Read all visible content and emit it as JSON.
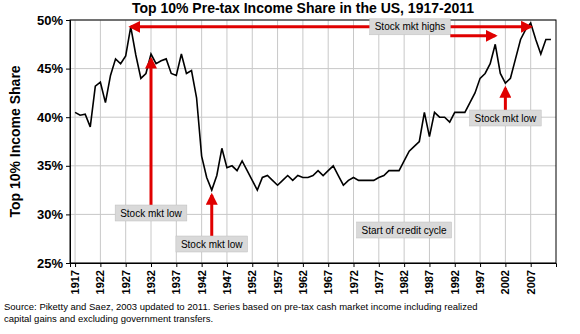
{
  "chart_data": {
    "type": "line",
    "title": "Top 10% Pre-tax Income Share in the US, 1917-2011",
    "y_label": "Top 10% Income Share",
    "source": [
      "Source: Piketty and Saez, 2003 updated to 2011. Series based on pre-tax cash market income including realized",
      "capital gains and excluding government transfers."
    ],
    "x": [
      1917,
      1918,
      1919,
      1920,
      1921,
      1922,
      1923,
      1924,
      1925,
      1926,
      1927,
      1928,
      1929,
      1930,
      1931,
      1932,
      1933,
      1934,
      1935,
      1936,
      1937,
      1938,
      1939,
      1940,
      1941,
      1942,
      1943,
      1944,
      1945,
      1946,
      1947,
      1948,
      1949,
      1950,
      1951,
      1952,
      1953,
      1954,
      1955,
      1956,
      1957,
      1958,
      1959,
      1960,
      1961,
      1962,
      1963,
      1964,
      1965,
      1966,
      1967,
      1968,
      1969,
      1970,
      1971,
      1972,
      1973,
      1974,
      1975,
      1976,
      1977,
      1978,
      1979,
      1980,
      1981,
      1982,
      1983,
      1984,
      1985,
      1986,
      1987,
      1988,
      1989,
      1990,
      1991,
      1992,
      1993,
      1994,
      1995,
      1996,
      1997,
      1998,
      1999,
      2000,
      2001,
      2002,
      2003,
      2004,
      2005,
      2006,
      2007,
      2008,
      2009,
      2010,
      2011
    ],
    "values": [
      40.5,
      40.2,
      40.3,
      39.0,
      43.2,
      43.6,
      41.5,
      44.3,
      46.0,
      45.5,
      46.3,
      49.3,
      46.4,
      44.0,
      44.5,
      46.5,
      45.5,
      45.8,
      46.0,
      44.5,
      44.3,
      46.5,
      44.5,
      44.8,
      42.0,
      36.0,
      33.8,
      32.5,
      34.0,
      36.8,
      34.8,
      35.0,
      34.5,
      35.5,
      34.5,
      33.5,
      32.5,
      33.8,
      34.0,
      33.5,
      33.0,
      33.5,
      34.0,
      33.5,
      34.0,
      33.8,
      33.8,
      34.0,
      34.5,
      34.0,
      34.5,
      35.0,
      34.0,
      33.0,
      33.5,
      33.8,
      33.5,
      33.5,
      33.5,
      33.5,
      33.8,
      34.0,
      34.5,
      34.5,
      34.5,
      35.5,
      36.5,
      37.0,
      37.5,
      40.5,
      38.0,
      40.5,
      40.0,
      40.0,
      39.5,
      40.5,
      40.5,
      40.5,
      41.5,
      42.5,
      44.0,
      44.5,
      45.5,
      47.5,
      44.5,
      43.5,
      44.0,
      46.0,
      48.0,
      49.0,
      49.7,
      48.0,
      46.5,
      48.0,
      48.0
    ],
    "color": "#000000",
    "xlim": [
      1916,
      2012
    ],
    "xticks": [
      1917,
      1922,
      1927,
      1932,
      1937,
      1942,
      1947,
      1952,
      1957,
      1962,
      1967,
      1972,
      1977,
      1982,
      1987,
      1992,
      1997,
      2002,
      2007
    ],
    "ylim": [
      25,
      50
    ],
    "yticks": [
      {
        "value": 25,
        "label": "25%"
      },
      {
        "value": 30,
        "label": "30%"
      },
      {
        "value": 35,
        "label": "35%"
      },
      {
        "value": 40,
        "label": "40%"
      },
      {
        "value": 45,
        "label": "45%"
      },
      {
        "value": 50,
        "label": "50%"
      }
    ],
    "grid": true,
    "annotations": [
      {
        "text": "Stock mkt highs",
        "x": [
          1928,
          2000,
          2007
        ]
      },
      {
        "text": "Stock mkt low",
        "x": 1932
      },
      {
        "text": "Stock mkt low",
        "x": 1944
      },
      {
        "text": "Start of credit cycle",
        "x": 1982
      },
      {
        "text": "Stock mkt low",
        "x": 2002
      }
    ]
  }
}
